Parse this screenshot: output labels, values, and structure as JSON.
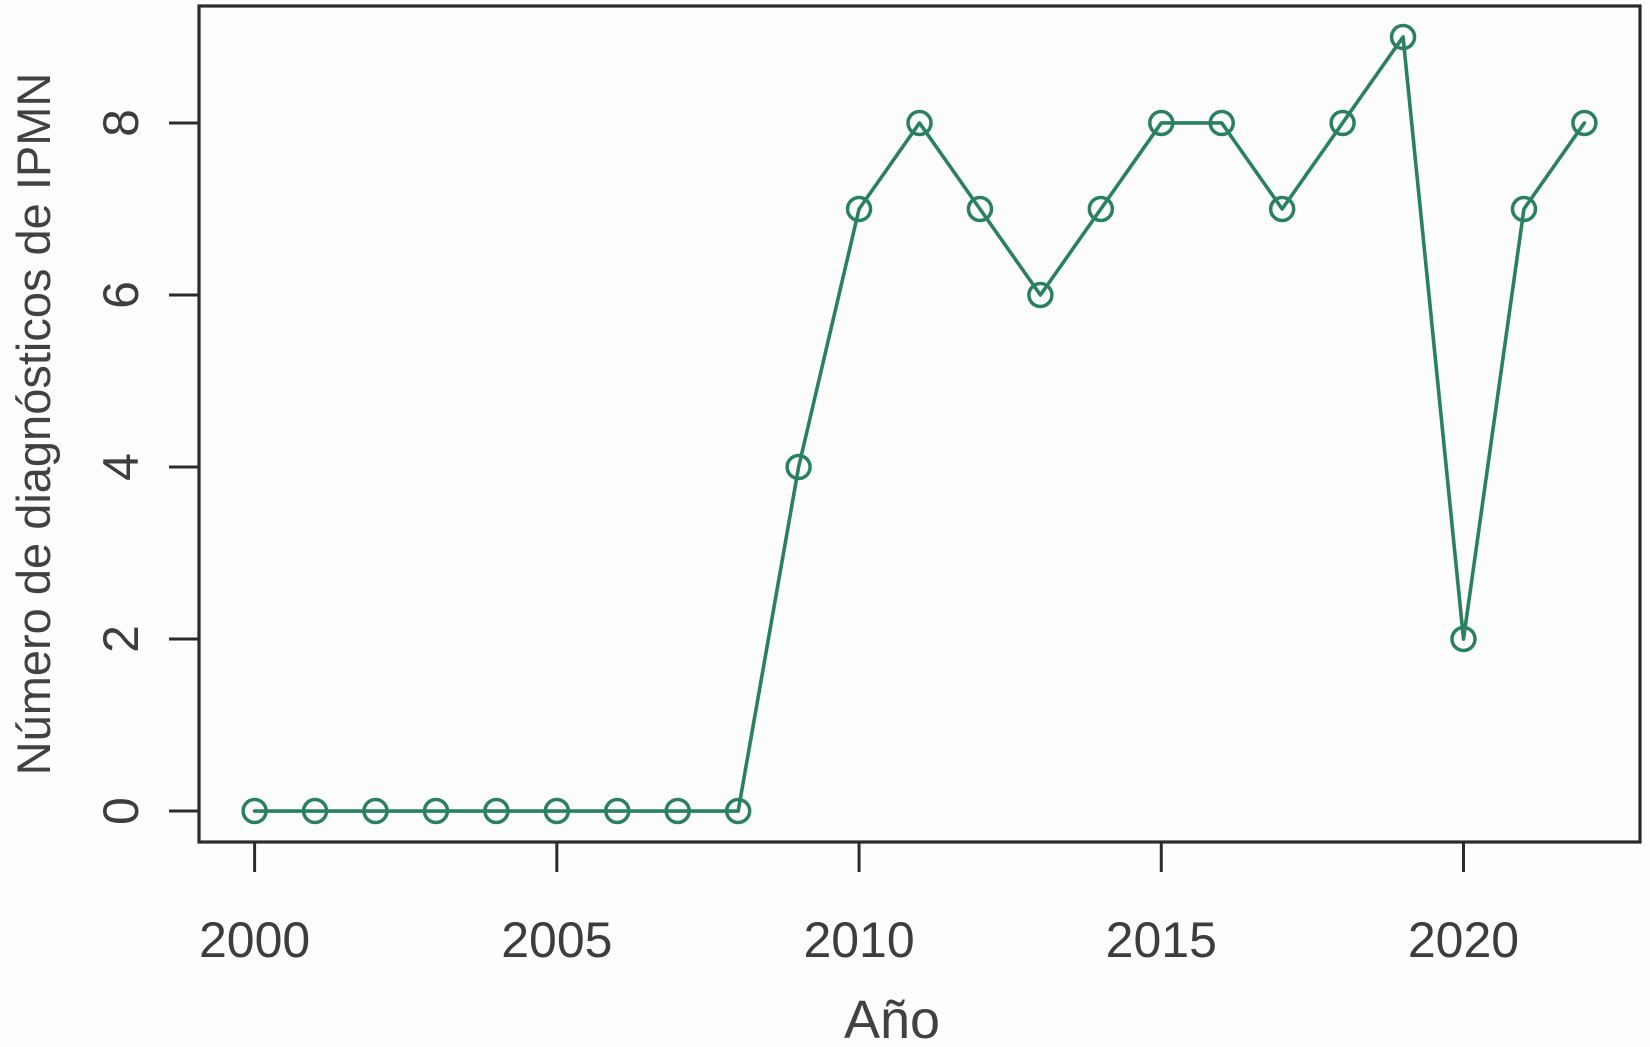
{
  "chart_data": {
    "type": "line",
    "title": "",
    "xlabel": "Año",
    "ylabel": "Número de diagnósticos de IPMN",
    "x": [
      2000,
      2001,
      2002,
      2003,
      2004,
      2005,
      2006,
      2007,
      2008,
      2009,
      2010,
      2011,
      2012,
      2013,
      2014,
      2015,
      2016,
      2017,
      2018,
      2019,
      2020,
      2021,
      2022
    ],
    "values": [
      0,
      0,
      0,
      0,
      0,
      0,
      0,
      0,
      0,
      4,
      7,
      8,
      7,
      6,
      7,
      8,
      8,
      7,
      8,
      9,
      2,
      7,
      8
    ],
    "x_ticks": [
      2000,
      2005,
      2010,
      2015,
      2020
    ],
    "y_ticks": [
      0,
      2,
      4,
      6,
      8
    ],
    "xlim": [
      1999.08,
      2022.92
    ],
    "ylim": [
      -0.36,
      9.36
    ],
    "grid": false,
    "legend_position": "none",
    "marker": "open-circle",
    "line_color": "#2A8160",
    "axis_color": "#2B2B2B",
    "label_color": "#3D3D3D",
    "background_color": "#fdfdfd"
  }
}
